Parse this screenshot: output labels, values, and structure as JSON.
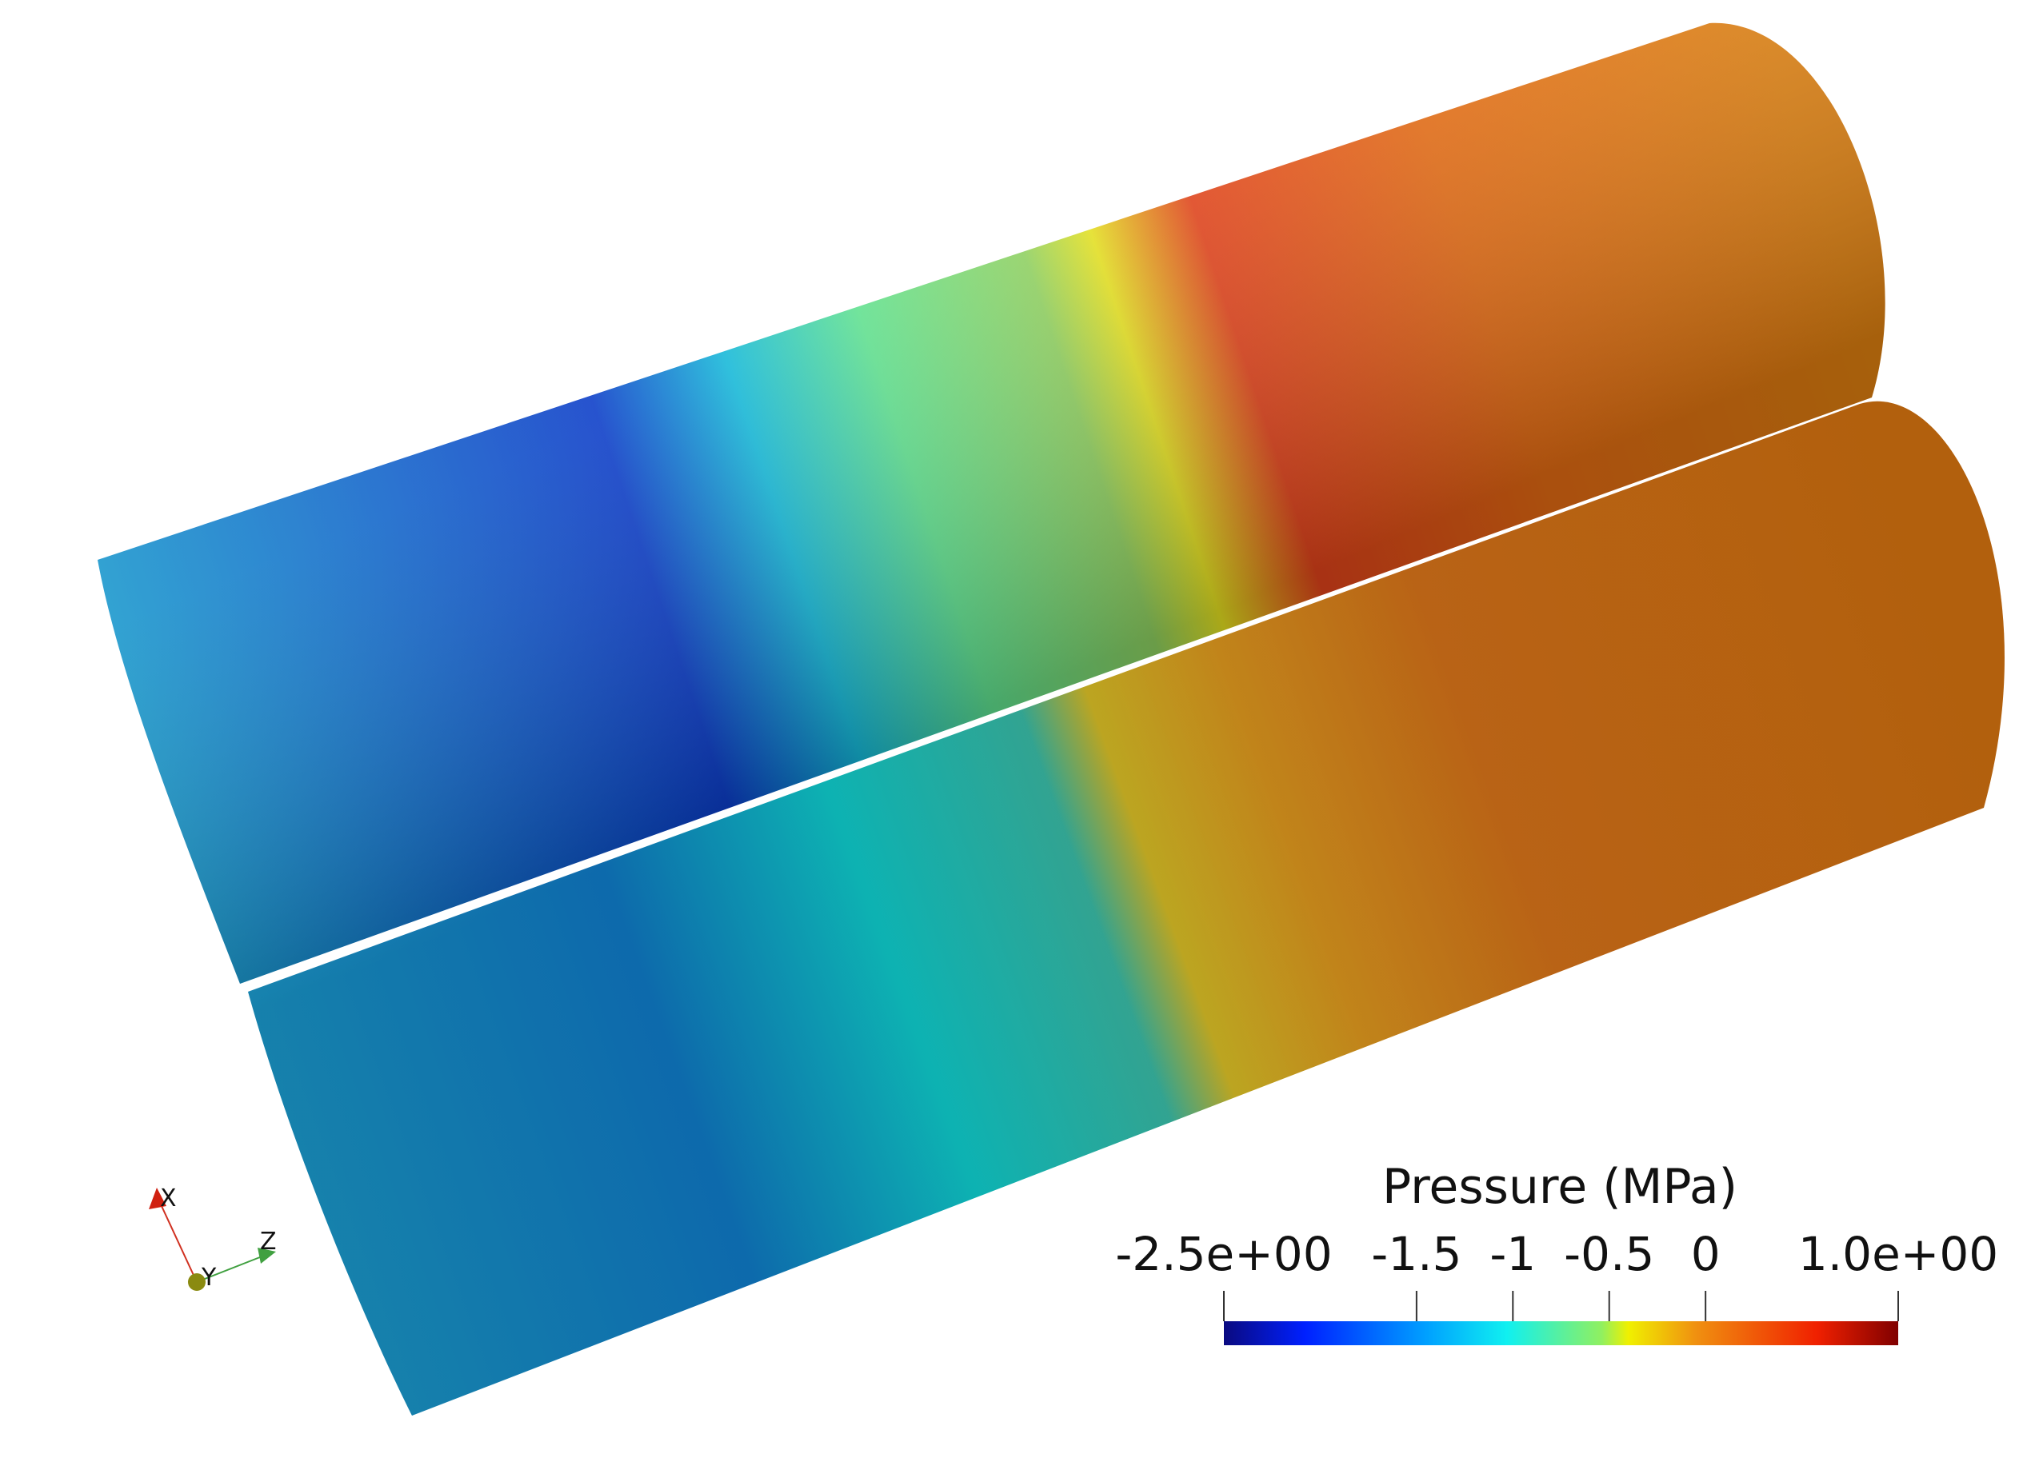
{
  "colorbar": {
    "title": "Pressure (MPa)",
    "range": [
      -2.5,
      1
    ],
    "ticks": [
      {
        "value": -2.5,
        "label": "-2.5e+00"
      },
      -1.5,
      -1,
      -0.5,
      0,
      {
        "value": 1,
        "label": "1.0e+00"
      }
    ]
  },
  "axes": {
    "x": "X",
    "y": "Y",
    "z": "Z"
  }
}
